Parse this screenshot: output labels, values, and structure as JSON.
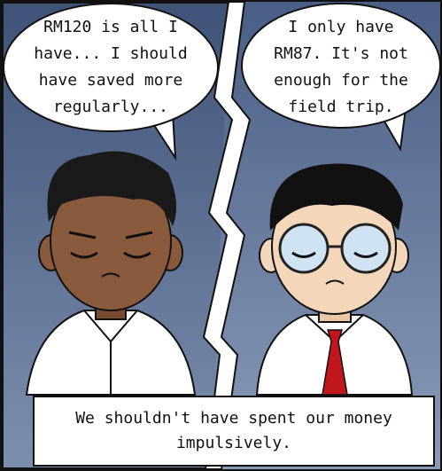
{
  "left_bubble": {
    "lines": [
      "RM120 is all I",
      "have... I should",
      "have saved more",
      "regularly..."
    ]
  },
  "right_bubble": {
    "lines": [
      "I only have",
      "RM87. It's not",
      "enough for the",
      "field trip."
    ]
  },
  "caption": {
    "lines": [
      "We shouldn't have spent our money",
      "impulsively."
    ]
  }
}
